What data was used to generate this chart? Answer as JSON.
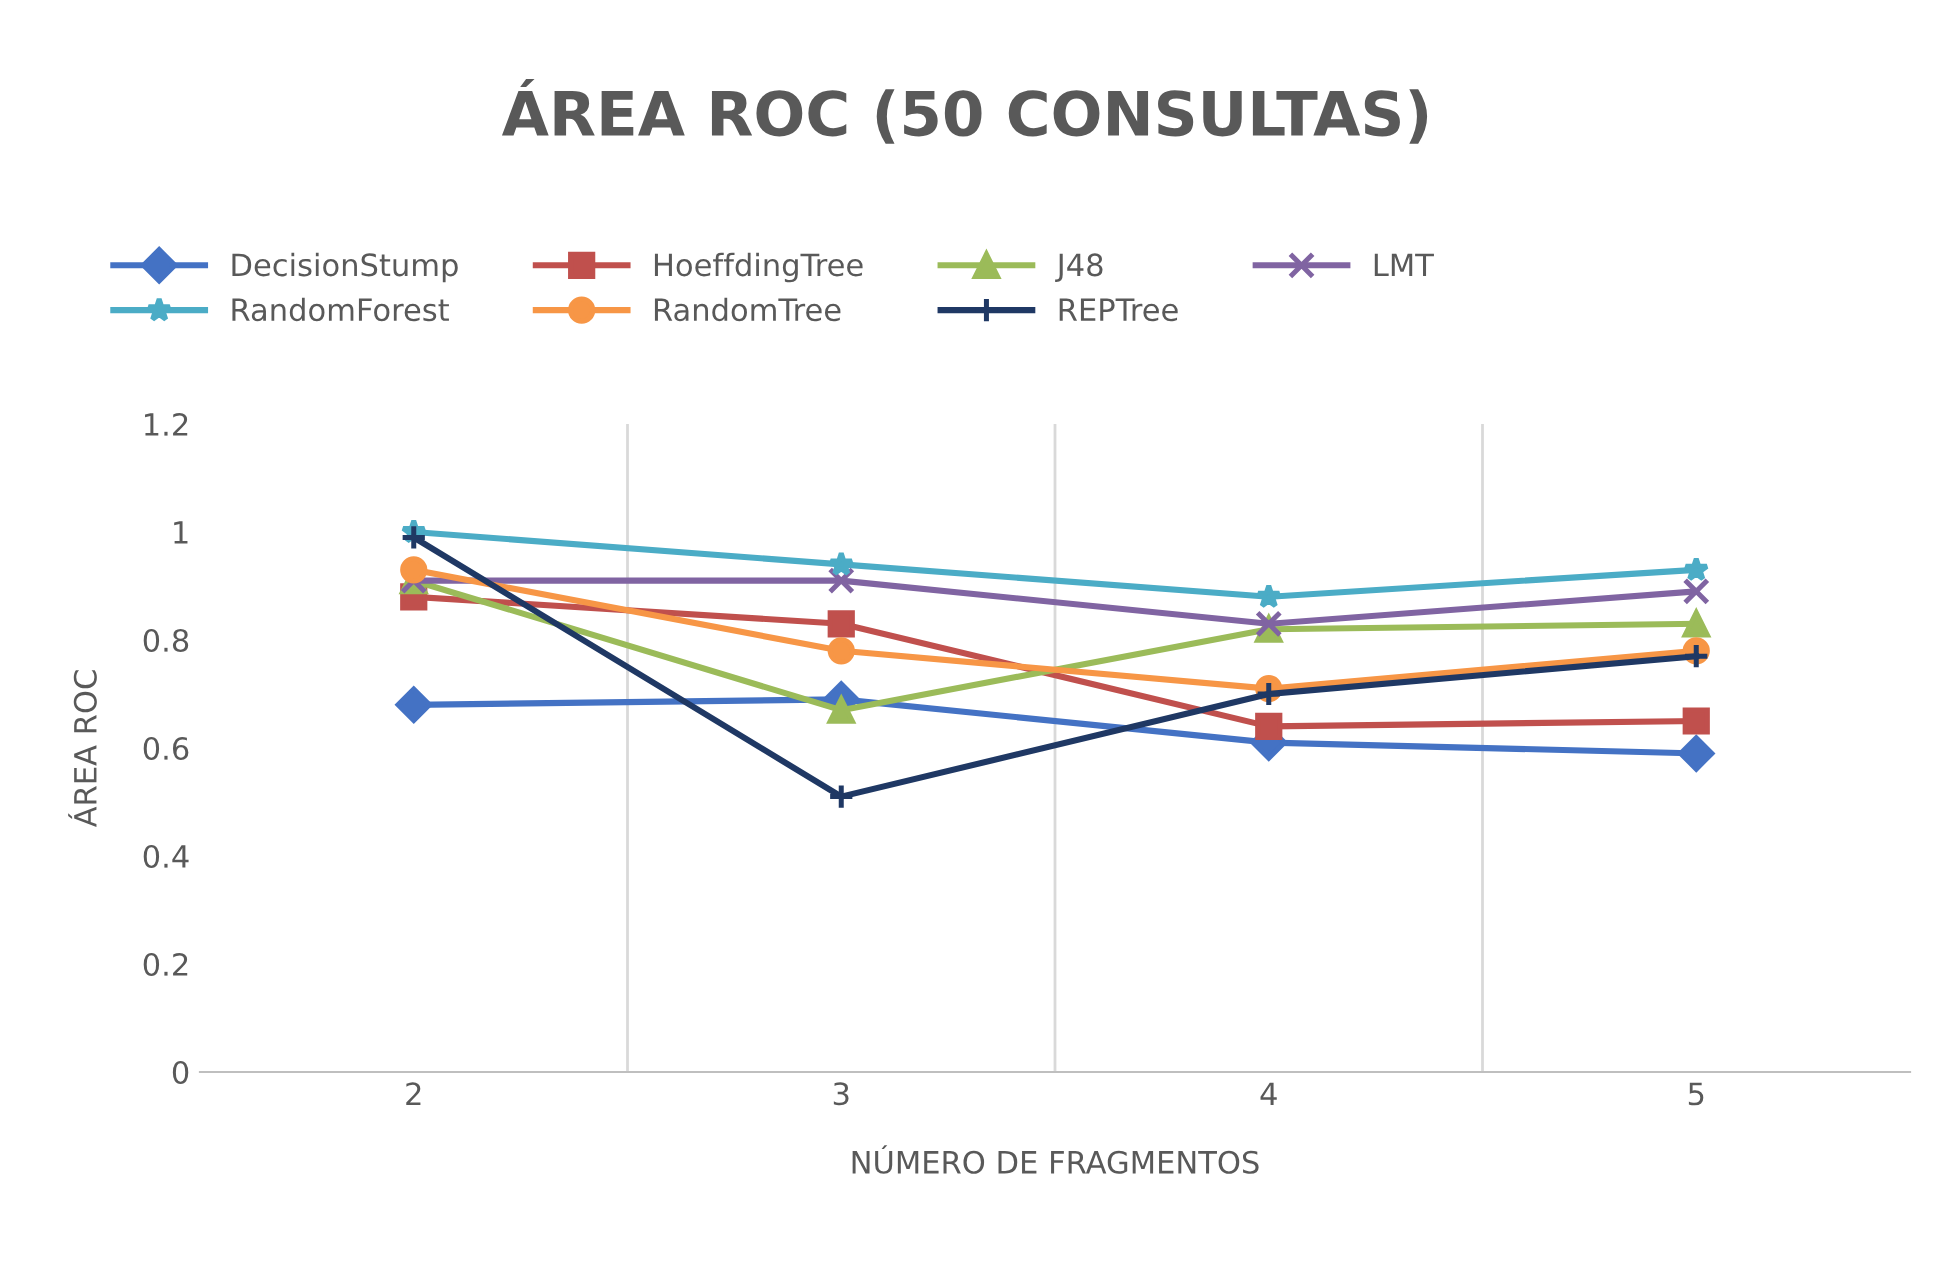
{
  "chart_data": {
    "type": "line",
    "title": "ÁREA ROC (50 CONSULTAS)",
    "xlabel": "NÚMERO DE FRAGMENTOS",
    "ylabel": "ÁREA ROC",
    "categories": [
      "2",
      "3",
      "4",
      "5"
    ],
    "ylim": [
      0,
      1.2
    ],
    "yticks": [
      0,
      0.2,
      0.4,
      0.6,
      0.8,
      1,
      1.2
    ],
    "grid": "x",
    "legend": "top",
    "series": [
      {
        "name": "DecisionStump",
        "color": "#4472c4",
        "marker": "diamond",
        "values": [
          0.68,
          0.69,
          0.61,
          0.59
        ]
      },
      {
        "name": "HoeffdingTree",
        "color": "#c0504d",
        "marker": "square",
        "values": [
          0.88,
          0.83,
          0.64,
          0.65
        ]
      },
      {
        "name": "J48",
        "color": "#9bbb59",
        "marker": "triangle",
        "values": [
          0.91,
          0.67,
          0.82,
          0.83
        ]
      },
      {
        "name": "LMT",
        "color": "#8064a2",
        "marker": "cross",
        "values": [
          0.91,
          0.91,
          0.83,
          0.89
        ]
      },
      {
        "name": "RandomForest",
        "color": "#4bacc6",
        "marker": "star",
        "values": [
          1.0,
          0.94,
          0.88,
          0.93
        ]
      },
      {
        "name": "RandomTree",
        "color": "#f79646",
        "marker": "circle",
        "values": [
          0.93,
          0.78,
          0.71,
          0.78
        ]
      },
      {
        "name": "REPTree",
        "color": "#1f3864",
        "marker": "plus",
        "values": [
          0.99,
          0.51,
          0.7,
          0.77
        ]
      }
    ]
  }
}
